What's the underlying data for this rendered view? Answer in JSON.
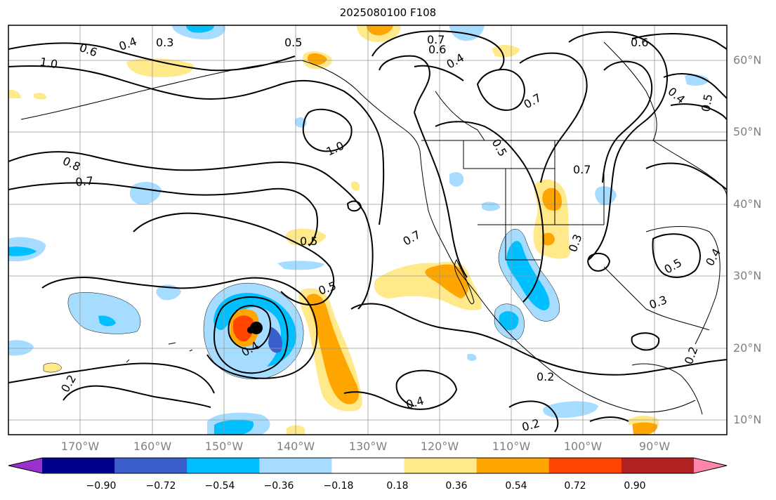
{
  "title": "2025080100 F108",
  "lat_labels": [
    "60°N",
    "50°N",
    "40°N",
    "30°N",
    "20°N",
    "10°N"
  ],
  "lon_labels": [
    "170°W",
    "160°W",
    "150°W",
    "140°W",
    "130°W",
    "120°W",
    "110°W",
    "100°W",
    "90°W"
  ],
  "contour_labels": [
    "0.3",
    "0.4",
    "0.6",
    "1.0",
    "0.5",
    "0.7",
    "0.6",
    "0.4",
    "0.8",
    "0.7",
    "0.5",
    "0.5",
    "0.7",
    "0.7",
    "0.5",
    "0.7",
    "0.3",
    "0.4",
    "0.5",
    "0.3",
    "0.4",
    "0.2",
    "0.4",
    "0.2",
    "0.2",
    "0.2",
    "1.0",
    "0.6",
    "0.5",
    "0.4"
  ],
  "colorbar": {
    "ticks": [
      "−0.90",
      "−0.72",
      "−0.54",
      "−0.36",
      "−0.18",
      "0.18",
      "0.36",
      "0.54",
      "0.72",
      "0.90"
    ],
    "colors": [
      "#9932cc",
      "#00008b",
      "#3a5fcd",
      "#00bfff",
      "#a6dcff",
      "#ffffff",
      "#ffe98a",
      "#ffa500",
      "#ff4500",
      "#b22222",
      "#ff88aa"
    ]
  },
  "colors": {
    "neg_strong": "#3a5fcd",
    "neg_mid": "#00bfff",
    "neg_light": "#a6dcff",
    "pos_light": "#ffe98a",
    "pos_mid": "#ffa500",
    "pos_strong": "#ff4500",
    "grid": "#999999"
  },
  "icons": {
    "storm_center": "storm-center-dot"
  }
}
